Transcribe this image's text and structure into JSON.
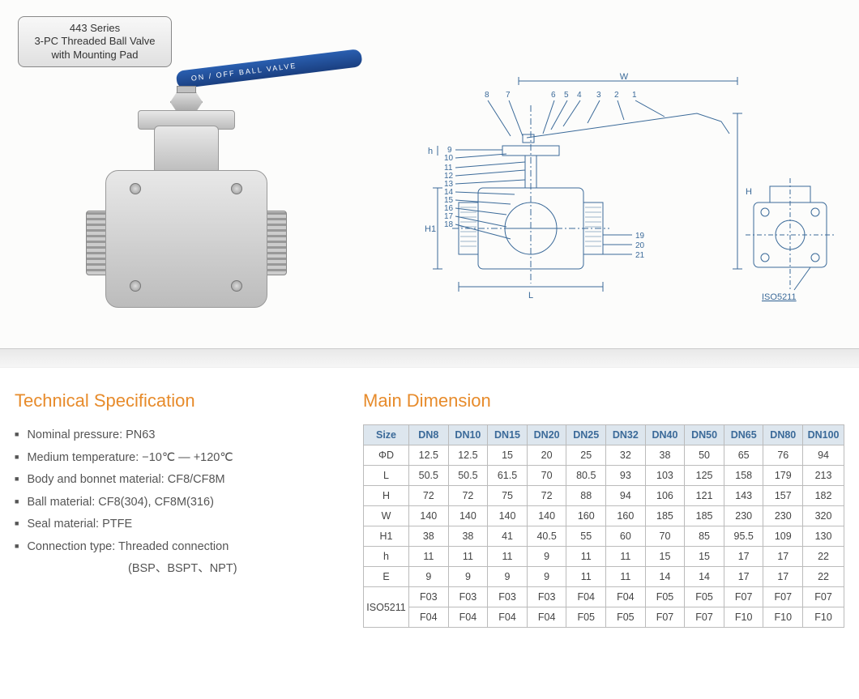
{
  "badge": {
    "line1": "443 Series",
    "line2": "3-PC Threaded Ball Valve",
    "line3": "with Mounting Pad",
    "bg_gradient": [
      "#f8f8f8",
      "#e0e0e0"
    ],
    "border_color": "#888888",
    "text_color": "#333333"
  },
  "handle_text": "ON / OFF   BALL VALVE",
  "diagram": {
    "color": "#3b6a99",
    "callouts_top": [
      "8",
      "7",
      "6",
      "5",
      "4",
      "3",
      "2",
      "1"
    ],
    "callouts_left": [
      "9",
      "10",
      "11",
      "12",
      "13",
      "14",
      "15",
      "16",
      "17",
      "18"
    ],
    "callouts_right": [
      "19",
      "20",
      "21"
    ],
    "dims": {
      "W": "W",
      "H": "H",
      "H1": "H1",
      "h": "h",
      "L": "L"
    },
    "iso_label": "ISO5211"
  },
  "tech_spec": {
    "title": "Technical Specification",
    "title_color": "#e78b2b",
    "items": [
      "Nominal pressure: PN63",
      "Medium temperature: −10℃ — +120℃",
      "Body and bonnet material: CF8/CF8M",
      "Ball material: CF8(304), CF8M(316)",
      "Seal material: PTFE",
      "Connection type: Threaded connection"
    ],
    "indent_line": "(BSP、BSPT、NPT)"
  },
  "main_dim": {
    "title": "Main Dimension",
    "title_color": "#e78b2b",
    "header_bg": "#dde6ee",
    "header_color": "#3b6a99",
    "border_color": "#bbbbbb",
    "columns": [
      "Size",
      "DN8",
      "DN10",
      "DN15",
      "DN20",
      "DN25",
      "DN32",
      "DN40",
      "DN50",
      "DN65",
      "DN80",
      "DN100"
    ],
    "rows": [
      {
        "label": "ΦD",
        "vals": [
          "12.5",
          "12.5",
          "15",
          "20",
          "25",
          "32",
          "38",
          "50",
          "65",
          "76",
          "94"
        ]
      },
      {
        "label": "L",
        "vals": [
          "50.5",
          "50.5",
          "61.5",
          "70",
          "80.5",
          "93",
          "103",
          "125",
          "158",
          "179",
          "213"
        ]
      },
      {
        "label": "H",
        "vals": [
          "72",
          "72",
          "75",
          "72",
          "88",
          "94",
          "106",
          "121",
          "143",
          "157",
          "182"
        ]
      },
      {
        "label": "W",
        "vals": [
          "140",
          "140",
          "140",
          "140",
          "160",
          "160",
          "185",
          "185",
          "230",
          "230",
          "320"
        ]
      },
      {
        "label": "H1",
        "vals": [
          "38",
          "38",
          "41",
          "40.5",
          "55",
          "60",
          "70",
          "85",
          "95.5",
          "109",
          "130"
        ]
      },
      {
        "label": "h",
        "vals": [
          "11",
          "11",
          "11",
          "9",
          "11",
          "11",
          "15",
          "15",
          "17",
          "17",
          "22"
        ]
      },
      {
        "label": "E",
        "vals": [
          "9",
          "9",
          "9",
          "9",
          "11",
          "11",
          "14",
          "14",
          "17",
          "17",
          "22"
        ]
      }
    ],
    "iso_rows": {
      "label": "ISO5211",
      "r1": [
        "F03",
        "F03",
        "F03",
        "F03",
        "F04",
        "F04",
        "F05",
        "F05",
        "F07",
        "F07",
        "F07"
      ],
      "r2": [
        "F04",
        "F04",
        "F04",
        "F04",
        "F05",
        "F05",
        "F07",
        "F07",
        "F10",
        "F10",
        "F10"
      ]
    }
  }
}
